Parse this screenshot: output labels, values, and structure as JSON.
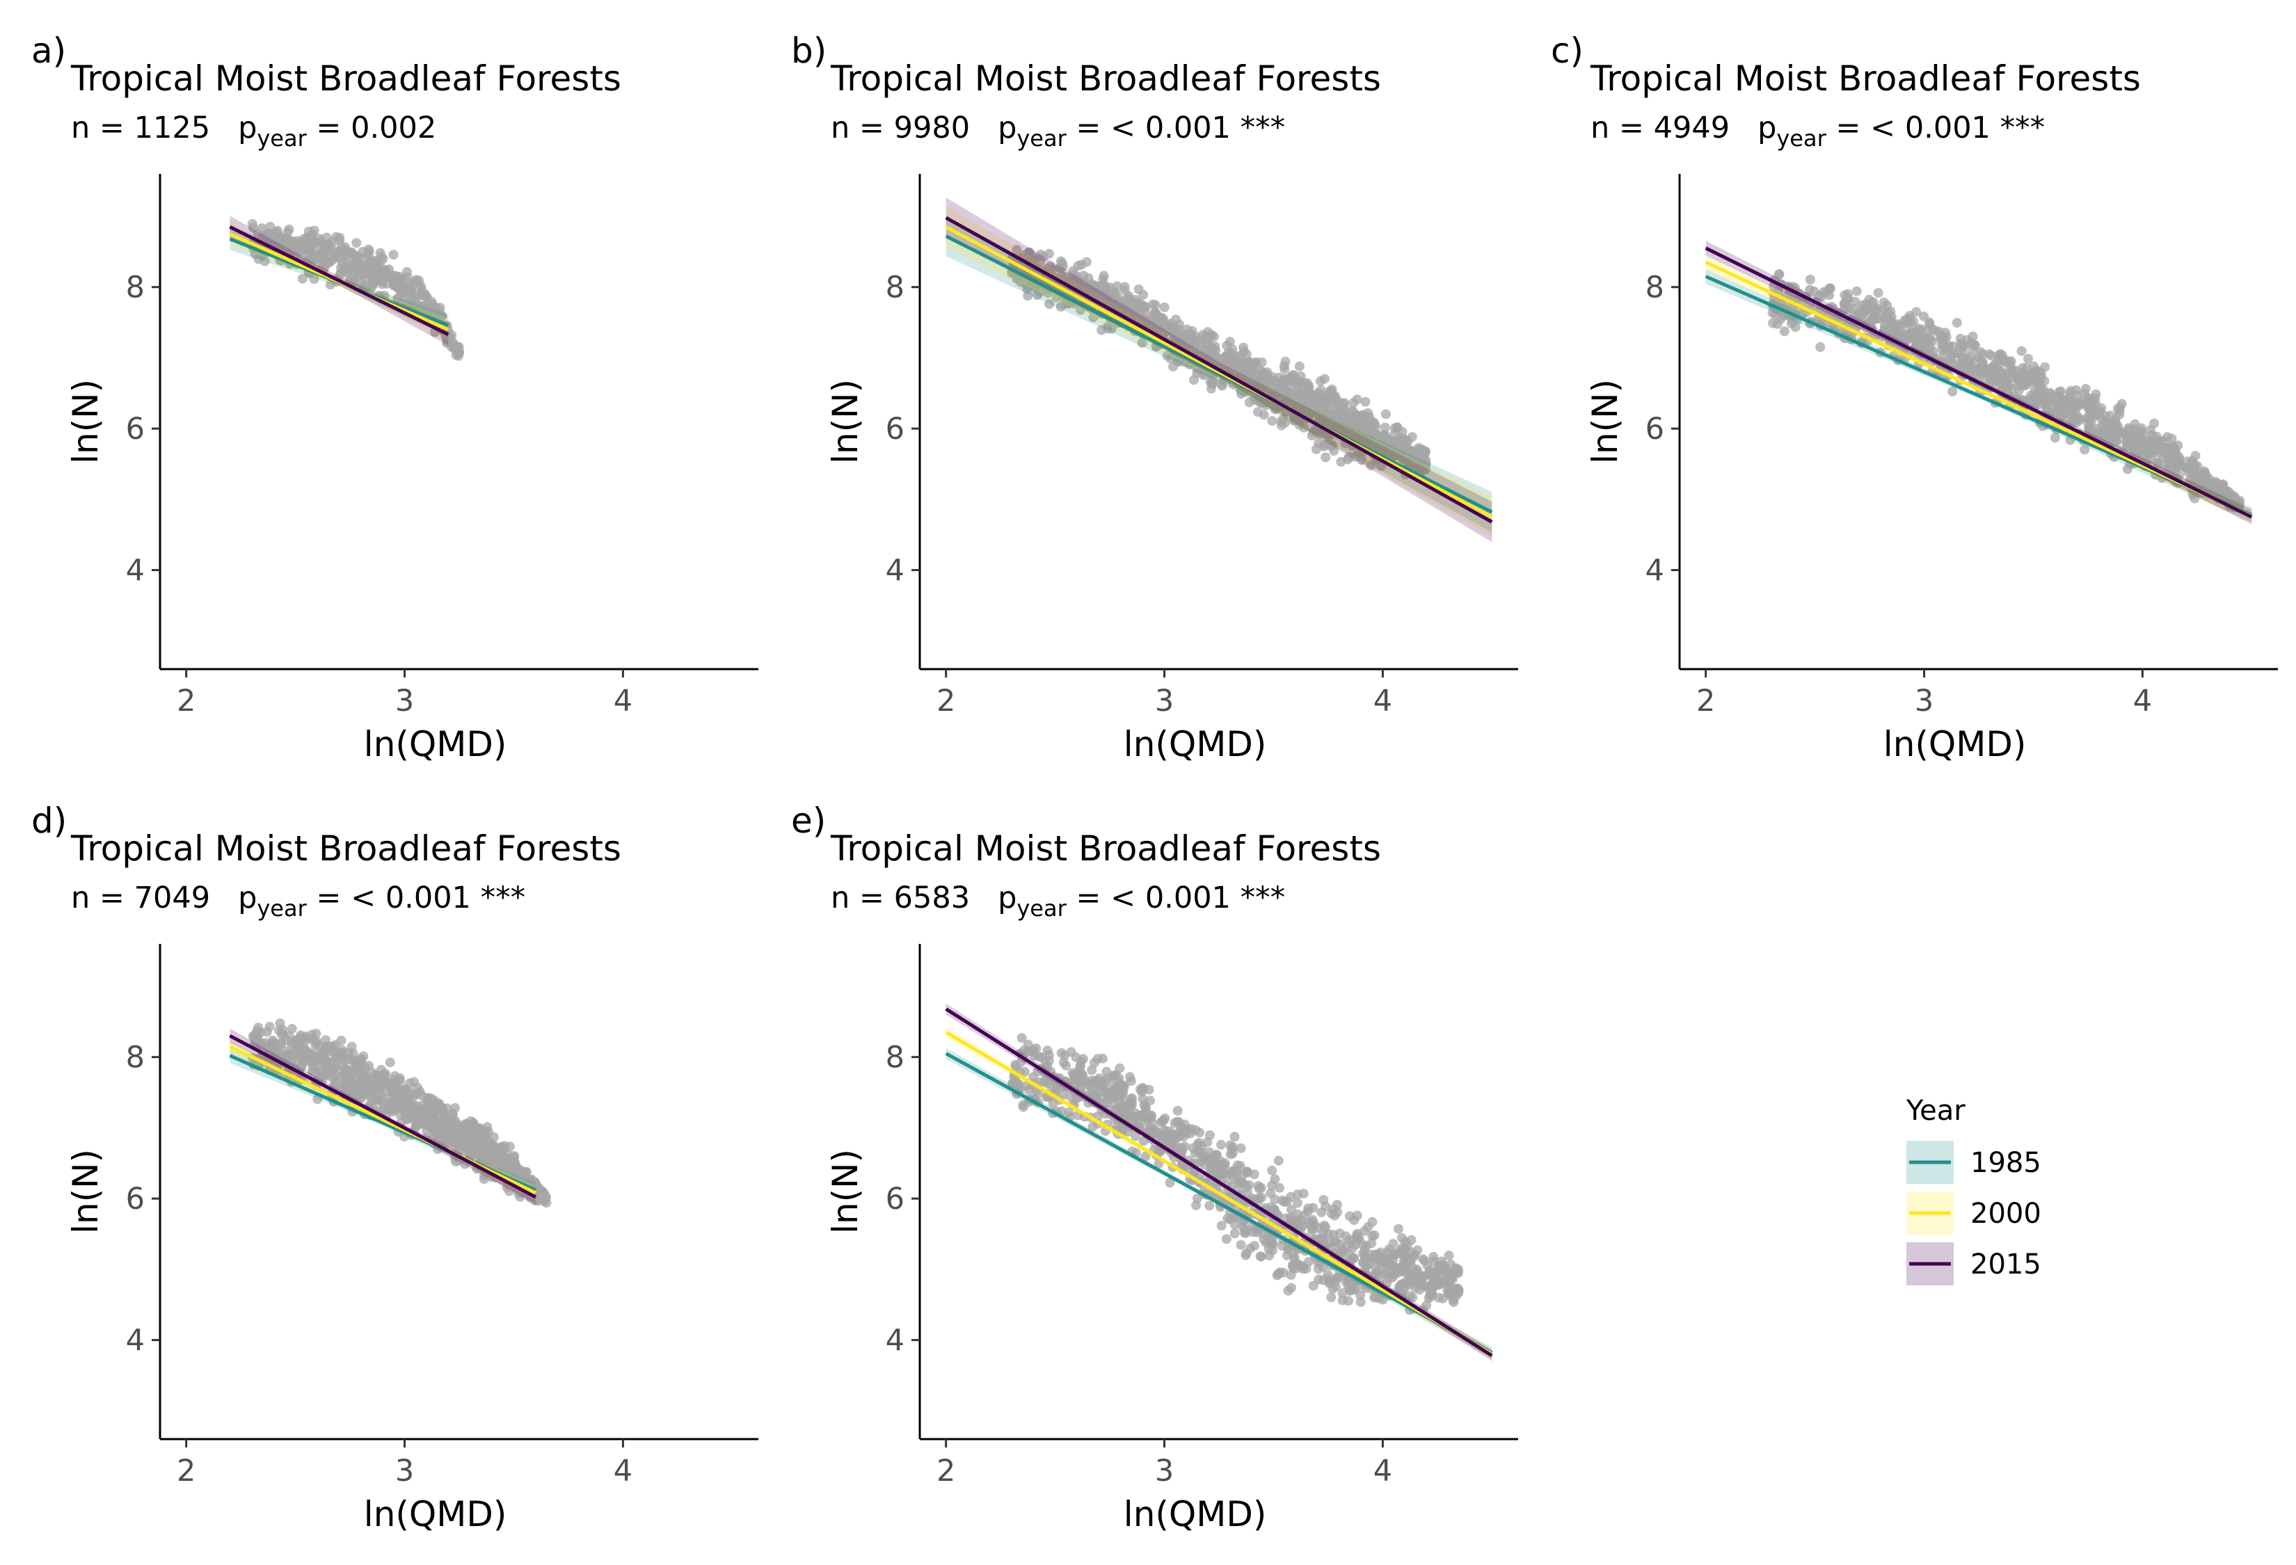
{
  "legend": {
    "title": "Year",
    "position": "right",
    "entries": [
      {
        "label": "1985",
        "color": "#21908C"
      },
      {
        "label": "2000",
        "color": "#FDE725"
      },
      {
        "label": "2015",
        "color": "#440154"
      }
    ]
  },
  "chart_data": [
    {
      "panel": "a)",
      "type": "scatter",
      "title": "Tropical Moist Broadleaf Forests",
      "n_label": "n = 1125",
      "p_prefix": "p",
      "p_sub": "year",
      "p_value": " = 0.002",
      "xlabel": "ln(QMD)",
      "ylabel": "ln(N)",
      "xlim": [
        1.88,
        4.62
      ],
      "ylim": [
        2.6,
        9.6
      ],
      "xticks": [
        2,
        3,
        4
      ],
      "yticks": [
        4,
        6,
        8
      ],
      "grid": false,
      "point_color": "#A6A6A6",
      "cloud": {
        "x": [
          2.3,
          3.25
        ],
        "upper": [
          [
            2.3,
            9.05
          ],
          [
            2.6,
            8.95
          ],
          [
            2.9,
            8.65
          ],
          [
            3.1,
            8.2
          ],
          [
            3.25,
            7.2
          ]
        ],
        "lower": [
          [
            2.3,
            8.3
          ],
          [
            2.6,
            8.0
          ],
          [
            2.9,
            7.75
          ],
          [
            3.1,
            7.4
          ],
          [
            3.25,
            6.95
          ]
        ],
        "count": 420
      },
      "series": [
        {
          "name": "1985",
          "x": [
            2.2,
            3.2
          ],
          "y": [
            8.68,
            7.46
          ]
        },
        {
          "name": "2000",
          "x": [
            2.2,
            3.2
          ],
          "y": [
            8.75,
            7.4
          ]
        },
        {
          "name": "2015",
          "x": [
            2.2,
            3.2
          ],
          "y": [
            8.85,
            7.33
          ]
        }
      ],
      "band": 0.12
    },
    {
      "panel": "b)",
      "type": "scatter",
      "title": "Tropical Moist Broadleaf Forests",
      "n_label": "n = 9980",
      "p_prefix": "p",
      "p_sub": "year",
      "p_value": " = < 0.001 ***",
      "xlabel": "ln(QMD)",
      "ylabel": "ln(N)",
      "xlim": [
        1.88,
        4.62
      ],
      "ylim": [
        2.6,
        9.6
      ],
      "xticks": [
        2,
        3,
        4
      ],
      "yticks": [
        4,
        6,
        8
      ],
      "grid": false,
      "point_color": "#A6A6A6",
      "cloud": {
        "x": [
          2.3,
          4.2
        ],
        "upper": [
          [
            2.3,
            8.8
          ],
          [
            2.8,
            8.2
          ],
          [
            3.3,
            7.3
          ],
          [
            3.8,
            6.8
          ],
          [
            4.2,
            5.8
          ]
        ],
        "lower": [
          [
            2.3,
            7.9
          ],
          [
            2.8,
            7.2
          ],
          [
            3.3,
            6.4
          ],
          [
            3.8,
            5.4
          ],
          [
            4.2,
            5.3
          ]
        ],
        "count": 1100
      },
      "series": [
        {
          "name": "1985",
          "x": [
            2.0,
            4.5
          ],
          "y": [
            8.72,
            4.82
          ]
        },
        {
          "name": "2000",
          "x": [
            2.0,
            4.5
          ],
          "y": [
            8.85,
            4.75
          ]
        },
        {
          "name": "2015",
          "x": [
            2.0,
            4.5
          ],
          "y": [
            8.98,
            4.68
          ]
        }
      ],
      "band": 0.22
    },
    {
      "panel": "c)",
      "type": "scatter",
      "title": "Tropical Moist Broadleaf Forests",
      "n_label": "n = 4949",
      "p_prefix": "p",
      "p_sub": "year",
      "p_value": " = < 0.001 ***",
      "xlabel": "ln(QMD)",
      "ylabel": "ln(N)",
      "xlim": [
        1.88,
        4.62
      ],
      "ylim": [
        2.6,
        9.6
      ],
      "xticks": [
        2,
        3,
        4
      ],
      "yticks": [
        4,
        6,
        8
      ],
      "grid": false,
      "point_color": "#A6A6A6",
      "cloud": {
        "x": [
          2.3,
          4.45
        ],
        "upper": [
          [
            2.3,
            8.4
          ],
          [
            2.8,
            8.05
          ],
          [
            3.3,
            7.4
          ],
          [
            3.8,
            6.6
          ],
          [
            4.2,
            5.9
          ],
          [
            4.45,
            5.0
          ]
        ],
        "lower": [
          [
            2.3,
            7.3
          ],
          [
            2.8,
            6.9
          ],
          [
            3.3,
            6.2
          ],
          [
            3.8,
            5.5
          ],
          [
            4.2,
            5.0
          ],
          [
            4.45,
            4.8
          ]
        ],
        "count": 950
      },
      "series": [
        {
          "name": "1985",
          "x": [
            2.0,
            4.5
          ],
          "y": [
            8.15,
            4.78
          ]
        },
        {
          "name": "2000",
          "x": [
            2.0,
            4.5
          ],
          "y": [
            8.35,
            4.76
          ]
        },
        {
          "name": "2015",
          "x": [
            2.0,
            4.5
          ],
          "y": [
            8.55,
            4.75
          ]
        }
      ],
      "band": 0.08
    },
    {
      "panel": "d)",
      "type": "scatter",
      "title": "Tropical Moist Broadleaf Forests",
      "n_label": "n = 7049",
      "p_prefix": "p",
      "p_sub": "year",
      "p_value": " = < 0.001 ***",
      "xlabel": "ln(QMD)",
      "ylabel": "ln(N)",
      "xlim": [
        1.88,
        4.62
      ],
      "ylim": [
        2.6,
        9.6
      ],
      "xticks": [
        2,
        3,
        4
      ],
      "yticks": [
        4,
        6,
        8
      ],
      "grid": false,
      "point_color": "#A6A6A6",
      "cloud": {
        "x": [
          2.3,
          3.65
        ],
        "upper": [
          [
            2.3,
            8.65
          ],
          [
            2.6,
            8.55
          ],
          [
            2.9,
            8.1
          ],
          [
            3.2,
            7.5
          ],
          [
            3.45,
            6.9
          ],
          [
            3.65,
            6.1
          ]
        ],
        "lower": [
          [
            2.3,
            7.7
          ],
          [
            2.6,
            7.35
          ],
          [
            2.9,
            6.9
          ],
          [
            3.2,
            6.5
          ],
          [
            3.45,
            6.0
          ],
          [
            3.65,
            5.9
          ]
        ],
        "count": 900
      },
      "series": [
        {
          "name": "1985",
          "x": [
            2.2,
            3.6
          ],
          "y": [
            8.02,
            6.12
          ]
        },
        {
          "name": "2000",
          "x": [
            2.2,
            3.6
          ],
          "y": [
            8.15,
            6.08
          ]
        },
        {
          "name": "2015",
          "x": [
            2.2,
            3.6
          ],
          "y": [
            8.3,
            6.02
          ]
        }
      ],
      "band": 0.08
    },
    {
      "panel": "e)",
      "type": "scatter",
      "title": "Tropical Moist Broadleaf Forests",
      "n_label": "n = 6583",
      "p_prefix": "p",
      "p_sub": "year",
      "p_value": " = < 0.001 ***",
      "xlabel": "ln(QMD)",
      "ylabel": "ln(N)",
      "xlim": [
        1.88,
        4.62
      ],
      "ylim": [
        2.6,
        9.6
      ],
      "xticks": [
        2,
        3,
        4
      ],
      "yticks": [
        4,
        6,
        8
      ],
      "grid": false,
      "point_color": "#A6A6A6",
      "cloud": {
        "x": [
          2.3,
          4.35
        ],
        "upper": [
          [
            2.3,
            8.5
          ],
          [
            2.7,
            8.2
          ],
          [
            3.1,
            7.4
          ],
          [
            3.5,
            6.7
          ],
          [
            3.9,
            6.0
          ],
          [
            4.35,
            5.2
          ]
        ],
        "lower": [
          [
            2.3,
            7.1
          ],
          [
            2.7,
            6.8
          ],
          [
            3.1,
            6.0
          ],
          [
            3.5,
            4.4
          ],
          [
            3.9,
            4.2
          ],
          [
            4.35,
            4.4
          ]
        ],
        "count": 1000
      },
      "series": [
        {
          "name": "1985",
          "x": [
            2.0,
            4.5
          ],
          "y": [
            8.05,
            3.82
          ]
        },
        {
          "name": "2000",
          "x": [
            2.0,
            4.5
          ],
          "y": [
            8.35,
            3.8
          ]
        },
        {
          "name": "2015",
          "x": [
            2.0,
            4.5
          ],
          "y": [
            8.68,
            3.78
          ]
        }
      ],
      "band": 0.06
    }
  ]
}
